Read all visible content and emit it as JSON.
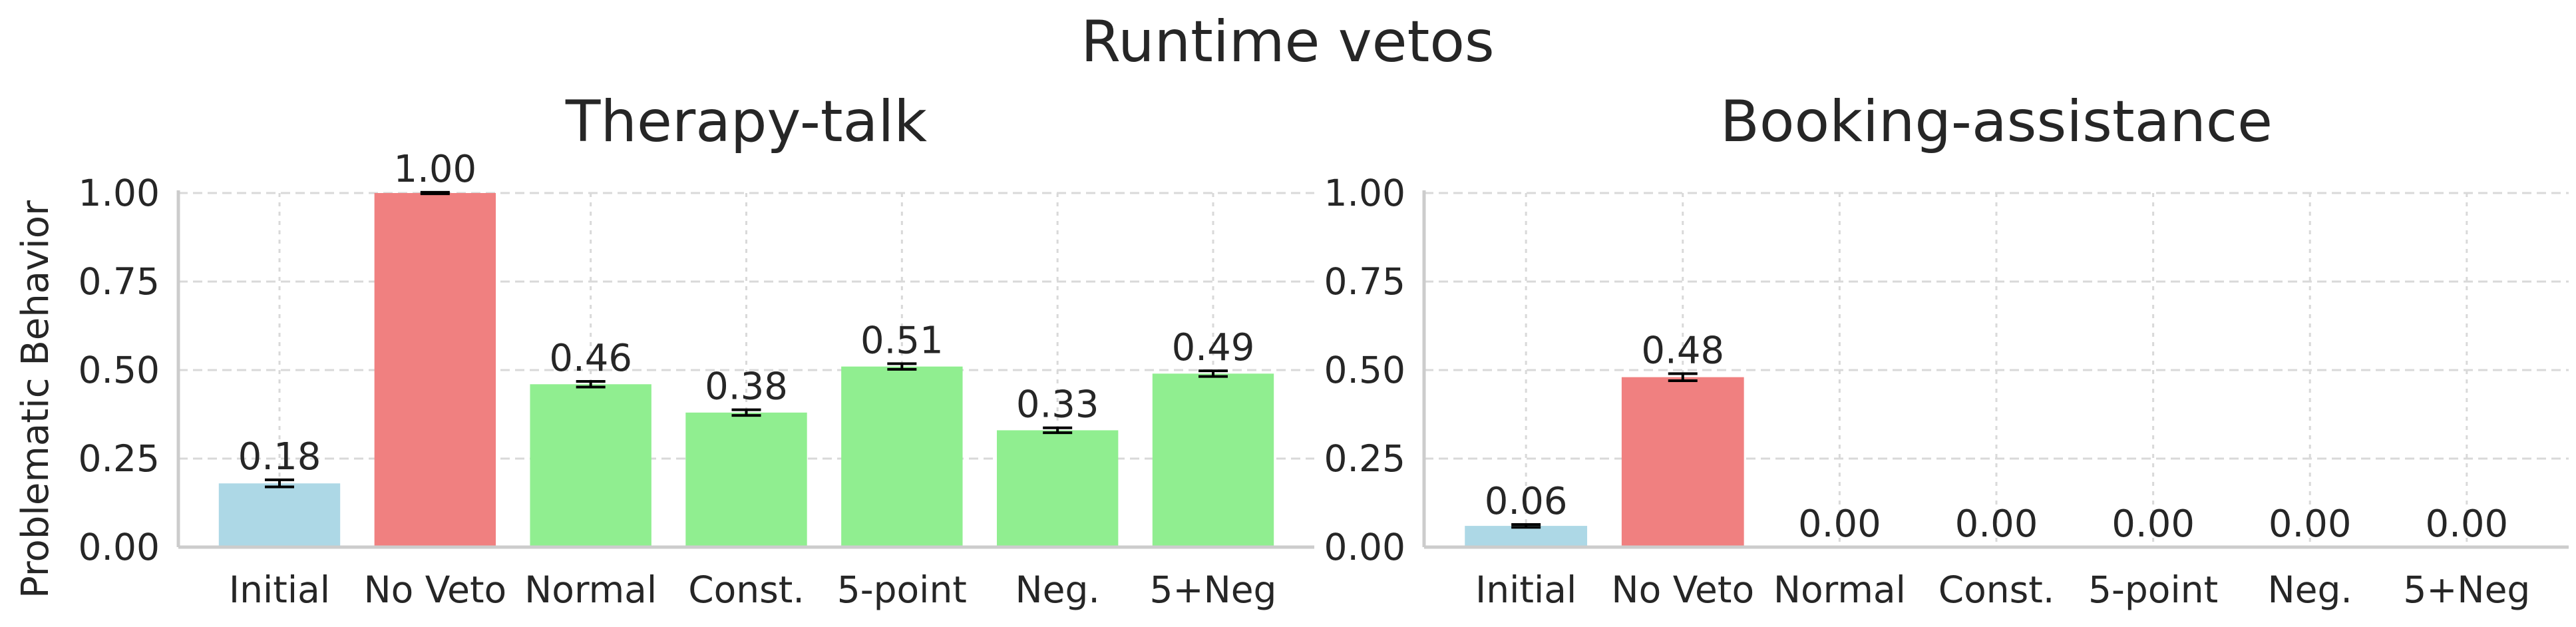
{
  "suptitle": "Runtime vetos",
  "ylabel": "Problematic Behavior",
  "colors": {
    "initial": "#add8e6",
    "no_veto": "#f08080",
    "variant": "#90ee90",
    "error_bar": "#000000",
    "grid": "#d9d9d9",
    "axis": "#cccccc"
  },
  "chart_data": [
    {
      "type": "bar",
      "title": "Therapy-talk",
      "categories": [
        "Initial",
        "No Veto",
        "Normal",
        "Const.",
        "5-point",
        "Neg.",
        "5+Neg"
      ],
      "values": [
        0.18,
        1.0,
        0.46,
        0.38,
        0.51,
        0.33,
        0.49
      ],
      "value_labels": [
        "0.18",
        "1.00",
        "0.46",
        "0.38",
        "0.51",
        "0.33",
        "0.49"
      ],
      "errors": [
        0.01,
        0.002,
        0.008,
        0.008,
        0.008,
        0.007,
        0.008
      ],
      "ylim": [
        0,
        1.0
      ],
      "yticks": [
        "0.00",
        "0.25",
        "0.50",
        "0.75",
        "1.00"
      ],
      "grid": true
    },
    {
      "type": "bar",
      "title": "Booking-assistance",
      "categories": [
        "Initial",
        "No Veto",
        "Normal",
        "Const.",
        "5-point",
        "Neg.",
        "5+Neg"
      ],
      "values": [
        0.06,
        0.48,
        0.0,
        0.0,
        0.0,
        0.0,
        0.0
      ],
      "value_labels": [
        "0.06",
        "0.48",
        "0.00",
        "0.00",
        "0.00",
        "0.00",
        "0.00"
      ],
      "errors": [
        0.004,
        0.01,
        0,
        0,
        0,
        0,
        0
      ],
      "ylim": [
        0,
        1.0
      ],
      "yticks": [
        "0.00",
        "0.25",
        "0.50",
        "0.75",
        "1.00"
      ],
      "grid": true
    }
  ]
}
